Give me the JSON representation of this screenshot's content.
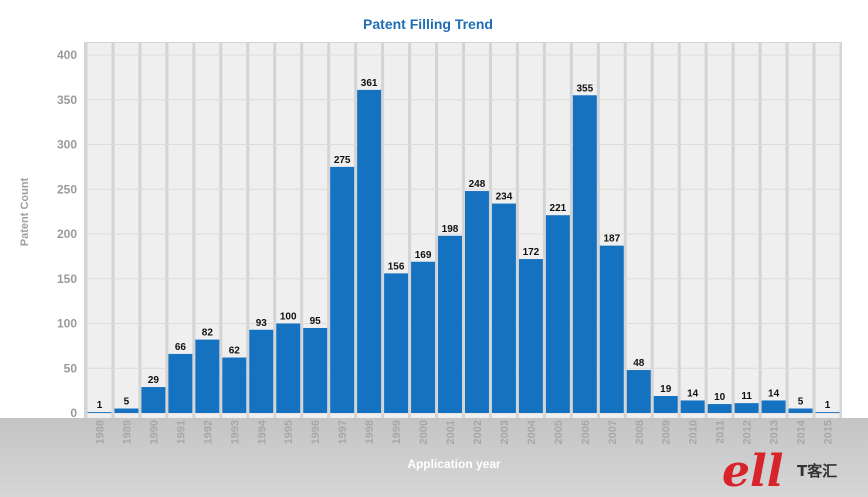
{
  "chart_data": {
    "type": "bar",
    "title": "Patent Filling Trend",
    "xlabel": "Application year",
    "ylabel": "Patent Count",
    "ylim": [
      0,
      400
    ],
    "yticks": [
      "0",
      "50",
      "100",
      "150",
      "200",
      "250",
      "300",
      "350",
      "400"
    ],
    "categories": [
      "1988",
      "1989",
      "1990",
      "1991",
      "1992",
      "1993",
      "1994",
      "1995",
      "1996",
      "1997",
      "1998",
      "1999",
      "2000",
      "2001",
      "2002",
      "2003",
      "2004",
      "2005",
      "2006",
      "2007",
      "2008",
      "2009",
      "2010",
      "2011",
      "2012",
      "2013",
      "2014",
      "2015"
    ],
    "values": [
      1,
      5,
      29,
      66,
      82,
      62,
      93,
      100,
      95,
      275,
      361,
      156,
      169,
      198,
      248,
      234,
      172,
      221,
      355,
      187,
      48,
      19,
      14,
      10,
      11,
      14,
      5,
      1
    ],
    "data_labels": [
      "1",
      "5",
      "29",
      "66",
      "82",
      "62",
      "93",
      "100",
      "95",
      "275",
      "361",
      "156",
      "169",
      "198",
      "248",
      "234",
      "172",
      "221",
      "355",
      "187",
      "48",
      "19",
      "14",
      "10",
      "11",
      "14",
      "5",
      "1"
    ],
    "grid": true,
    "bar_color": "#1572c1",
    "column_bg_color": "#efefef",
    "plot_bg_color": "#d4d4d4"
  },
  "watermark": {
    "logo_letters": "ell",
    "text": "T客汇"
  }
}
